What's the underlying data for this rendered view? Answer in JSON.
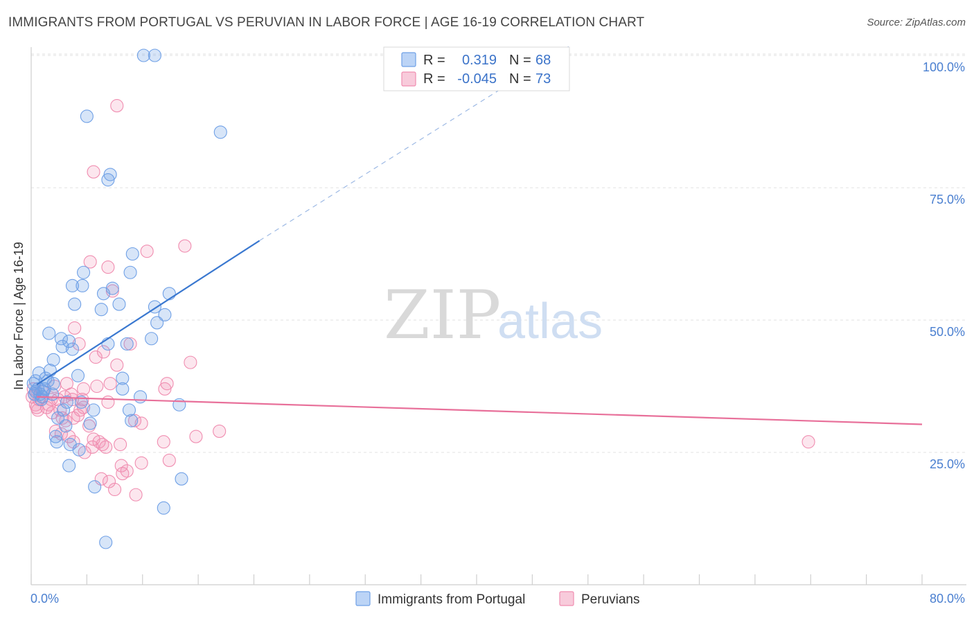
{
  "header": {
    "title": "IMMIGRANTS FROM PORTUGAL VS PERUVIAN IN LABOR FORCE | AGE 16-19 CORRELATION CHART",
    "source": "Source: ZipAtlas.com"
  },
  "watermark": {
    "zip": "ZIP",
    "atlas": "atlas"
  },
  "legend": {
    "rows": [
      {
        "r_label": "R =",
        "r_value": "0.319",
        "n_label": "N =",
        "n_value": "68"
      },
      {
        "r_label": "R =",
        "r_value": "-0.045",
        "n_label": "N =",
        "n_value": "73"
      }
    ]
  },
  "colors": {
    "blue": "#6fa0e6",
    "blue_line": "#3a78d0",
    "pink": "#f08db0",
    "pink_line": "#e8709a"
  },
  "chart_data": {
    "type": "scatter",
    "title": "IMMIGRANTS FROM PORTUGAL VS PERUVIAN IN LABOR FORCE | AGE 16-19 CORRELATION CHART",
    "ylabel": "In Labor Force | Age 16-19",
    "xlabel": "",
    "xlim": [
      0,
      80
    ],
    "ylim": [
      0,
      102
    ],
    "x_tick_labels": [
      "0.0%",
      "80.0%"
    ],
    "y_ticks": [
      25,
      50,
      75,
      100
    ],
    "y_tick_labels": [
      "25.0%",
      "50.0%",
      "75.0%",
      "100.0%"
    ],
    "series": [
      {
        "name": "Immigrants from Portugal",
        "r": 0.319,
        "n": 68,
        "trend": {
          "x0": 0.5,
          "y0": 37.8,
          "x1": 20.5,
          "y1": 65.0,
          "dash_x1": 48.5,
          "dash_y1": 102
        },
        "points": [
          [
            10.1,
            100
          ],
          [
            11.1,
            100
          ],
          [
            5.0,
            88.5
          ],
          [
            17.0,
            85.5
          ],
          [
            7.1,
            77.5
          ],
          [
            6.9,
            76.5
          ],
          [
            9.1,
            62.5
          ],
          [
            4.7,
            59.0
          ],
          [
            8.9,
            59.0
          ],
          [
            3.7,
            56.5
          ],
          [
            4.6,
            56.5
          ],
          [
            7.3,
            56.0
          ],
          [
            6.5,
            55.0
          ],
          [
            12.4,
            55.0
          ],
          [
            3.9,
            53.0
          ],
          [
            7.9,
            53.0
          ],
          [
            6.3,
            52.0
          ],
          [
            11.1,
            52.5
          ],
          [
            11.3,
            49.5
          ],
          [
            12.0,
            51.0
          ],
          [
            1.6,
            47.5
          ],
          [
            2.7,
            46.5
          ],
          [
            3.4,
            46.0
          ],
          [
            10.8,
            46.5
          ],
          [
            8.6,
            45.5
          ],
          [
            6.9,
            45.5
          ],
          [
            2.8,
            45.0
          ],
          [
            3.7,
            44.5
          ],
          [
            2.0,
            42.5
          ],
          [
            1.7,
            40.5
          ],
          [
            0.7,
            40.0
          ],
          [
            1.3,
            39.0
          ],
          [
            4.2,
            39.5
          ],
          [
            8.2,
            39.0
          ],
          [
            0.4,
            38.5
          ],
          [
            0.6,
            37.0
          ],
          [
            1.2,
            37.0
          ],
          [
            0.3,
            36.0
          ],
          [
            0.8,
            36.0
          ],
          [
            1.9,
            36.0
          ],
          [
            1.0,
            35.5
          ],
          [
            3.2,
            34.5
          ],
          [
            4.5,
            34.5
          ],
          [
            9.8,
            35.5
          ],
          [
            8.2,
            37.0
          ],
          [
            2.9,
            33.0
          ],
          [
            5.6,
            33.0
          ],
          [
            8.8,
            33.0
          ],
          [
            13.3,
            34.0
          ],
          [
            2.4,
            31.5
          ],
          [
            3.1,
            30.0
          ],
          [
            5.3,
            30.5
          ],
          [
            9.0,
            31.0
          ],
          [
            2.2,
            28.0
          ],
          [
            2.3,
            27.0
          ],
          [
            3.5,
            26.5
          ],
          [
            4.3,
            25.5
          ],
          [
            3.4,
            22.5
          ],
          [
            13.5,
            20.0
          ],
          [
            5.7,
            18.5
          ],
          [
            11.9,
            14.5
          ],
          [
            6.7,
            8.0
          ],
          [
            0.2,
            38.0
          ],
          [
            0.4,
            36.5
          ],
          [
            0.9,
            35.0
          ],
          [
            1.5,
            38.5
          ],
          [
            2.0,
            38.0
          ],
          [
            1.1,
            36.5
          ]
        ]
      },
      {
        "name": "Peruvians",
        "r": -0.045,
        "n": 73,
        "trend": {
          "x0": 0.5,
          "y0": 35.5,
          "x1": 80,
          "y1": 30.3
        },
        "points": [
          [
            7.7,
            90.5
          ],
          [
            5.6,
            78.0
          ],
          [
            13.8,
            64.0
          ],
          [
            10.4,
            63.0
          ],
          [
            6.9,
            60.0
          ],
          [
            5.3,
            61.0
          ],
          [
            7.3,
            55.5
          ],
          [
            3.9,
            48.5
          ],
          [
            4.3,
            45.5
          ],
          [
            8.9,
            45.5
          ],
          [
            6.5,
            44.0
          ],
          [
            5.8,
            43.0
          ],
          [
            14.3,
            42.0
          ],
          [
            7.7,
            41.5
          ],
          [
            2.1,
            37.5
          ],
          [
            3.2,
            38.0
          ],
          [
            7.1,
            38.0
          ],
          [
            12.2,
            38.0
          ],
          [
            4.7,
            37.0
          ],
          [
            12.0,
            37.0
          ],
          [
            0.3,
            36.0
          ],
          [
            0.7,
            35.0
          ],
          [
            1.8,
            35.0
          ],
          [
            3.0,
            35.5
          ],
          [
            3.7,
            35.0
          ],
          [
            4.6,
            35.0
          ],
          [
            6.9,
            34.5
          ],
          [
            0.5,
            33.5
          ],
          [
            1.4,
            33.5
          ],
          [
            2.6,
            33.0
          ],
          [
            4.7,
            33.5
          ],
          [
            1.9,
            32.5
          ],
          [
            4.2,
            32.0
          ],
          [
            3.1,
            31.0
          ],
          [
            3.8,
            31.5
          ],
          [
            9.3,
            31.0
          ],
          [
            9.9,
            30.5
          ],
          [
            5.2,
            30.0
          ],
          [
            2.2,
            29.0
          ],
          [
            2.7,
            28.5
          ],
          [
            3.4,
            28.0
          ],
          [
            14.8,
            28.0
          ],
          [
            16.9,
            29.0
          ],
          [
            5.6,
            27.5
          ],
          [
            6.1,
            27.0
          ],
          [
            3.8,
            27.0
          ],
          [
            11.9,
            27.0
          ],
          [
            6.4,
            26.5
          ],
          [
            8.0,
            26.5
          ],
          [
            5.5,
            26.0
          ],
          [
            6.7,
            26.0
          ],
          [
            4.8,
            25.0
          ],
          [
            12.4,
            23.5
          ],
          [
            9.9,
            23.0
          ],
          [
            8.1,
            22.5
          ],
          [
            8.6,
            21.5
          ],
          [
            8.2,
            21.0
          ],
          [
            6.3,
            20.0
          ],
          [
            7.0,
            19.5
          ],
          [
            7.5,
            18.0
          ],
          [
            9.4,
            17.0
          ],
          [
            69.8,
            27.0
          ],
          [
            0.2,
            37.0
          ],
          [
            0.4,
            34.0
          ],
          [
            1.0,
            36.5
          ],
          [
            2.4,
            35.0
          ],
          [
            0.6,
            33.0
          ],
          [
            1.6,
            34.0
          ],
          [
            3.6,
            36.0
          ],
          [
            5.9,
            37.5
          ],
          [
            4.4,
            33.0
          ],
          [
            2.8,
            31.5
          ],
          [
            0.1,
            35.5
          ]
        ]
      }
    ]
  }
}
